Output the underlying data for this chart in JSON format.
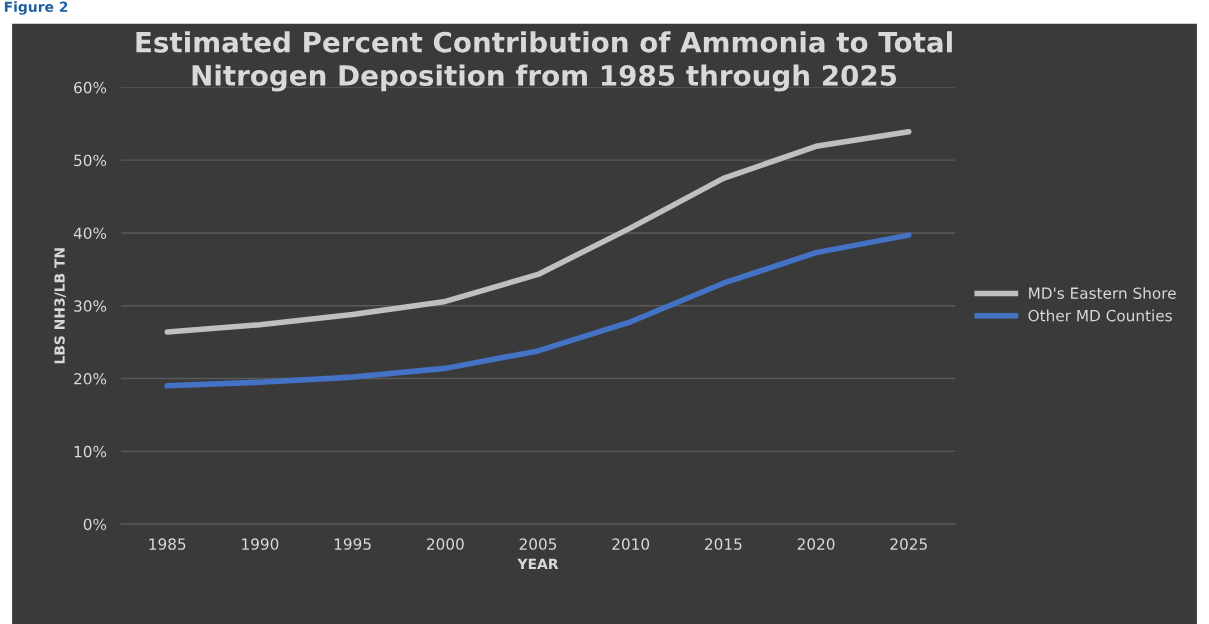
{
  "chart_data": {
    "type": "line",
    "title": "Estimated Percent Contribution of Ammonia to Total\nNitrogen Deposition from 1985 through 2025",
    "xlabel": "YEAR",
    "ylabel": "LBS NH3/LB TN",
    "annotations": [
      "Figure 2"
    ],
    "categories": [
      "1985",
      "1990",
      "1995",
      "2000",
      "2005",
      "2010",
      "2015",
      "2020",
      "2025"
    ],
    "series": [
      {
        "name": "MD's Eastern Shore",
        "color": "#bfbfbf",
        "values": [
          26.4,
          27.4,
          28.8,
          30.6,
          34.3,
          40.7,
          47.5,
          51.9,
          53.9
        ]
      },
      {
        "name": "Other MD Counties",
        "color": "#4472c4",
        "values": [
          19.0,
          19.5,
          20.2,
          21.4,
          23.8,
          27.8,
          33.1,
          37.3,
          39.7
        ]
      }
    ],
    "ylim": [
      0,
      60
    ],
    "yticks": [
      {
        "value": 0,
        "label": "0%"
      },
      {
        "value": 10,
        "label": "10%"
      },
      {
        "value": 20,
        "label": "20%"
      },
      {
        "value": 30,
        "label": "30%"
      },
      {
        "value": 40,
        "label": "40%"
      },
      {
        "value": 50,
        "label": "50%"
      },
      {
        "value": 60,
        "label": "60%"
      }
    ],
    "grid": "y",
    "legend": "right",
    "marker": "none",
    "line_style": "solid"
  }
}
